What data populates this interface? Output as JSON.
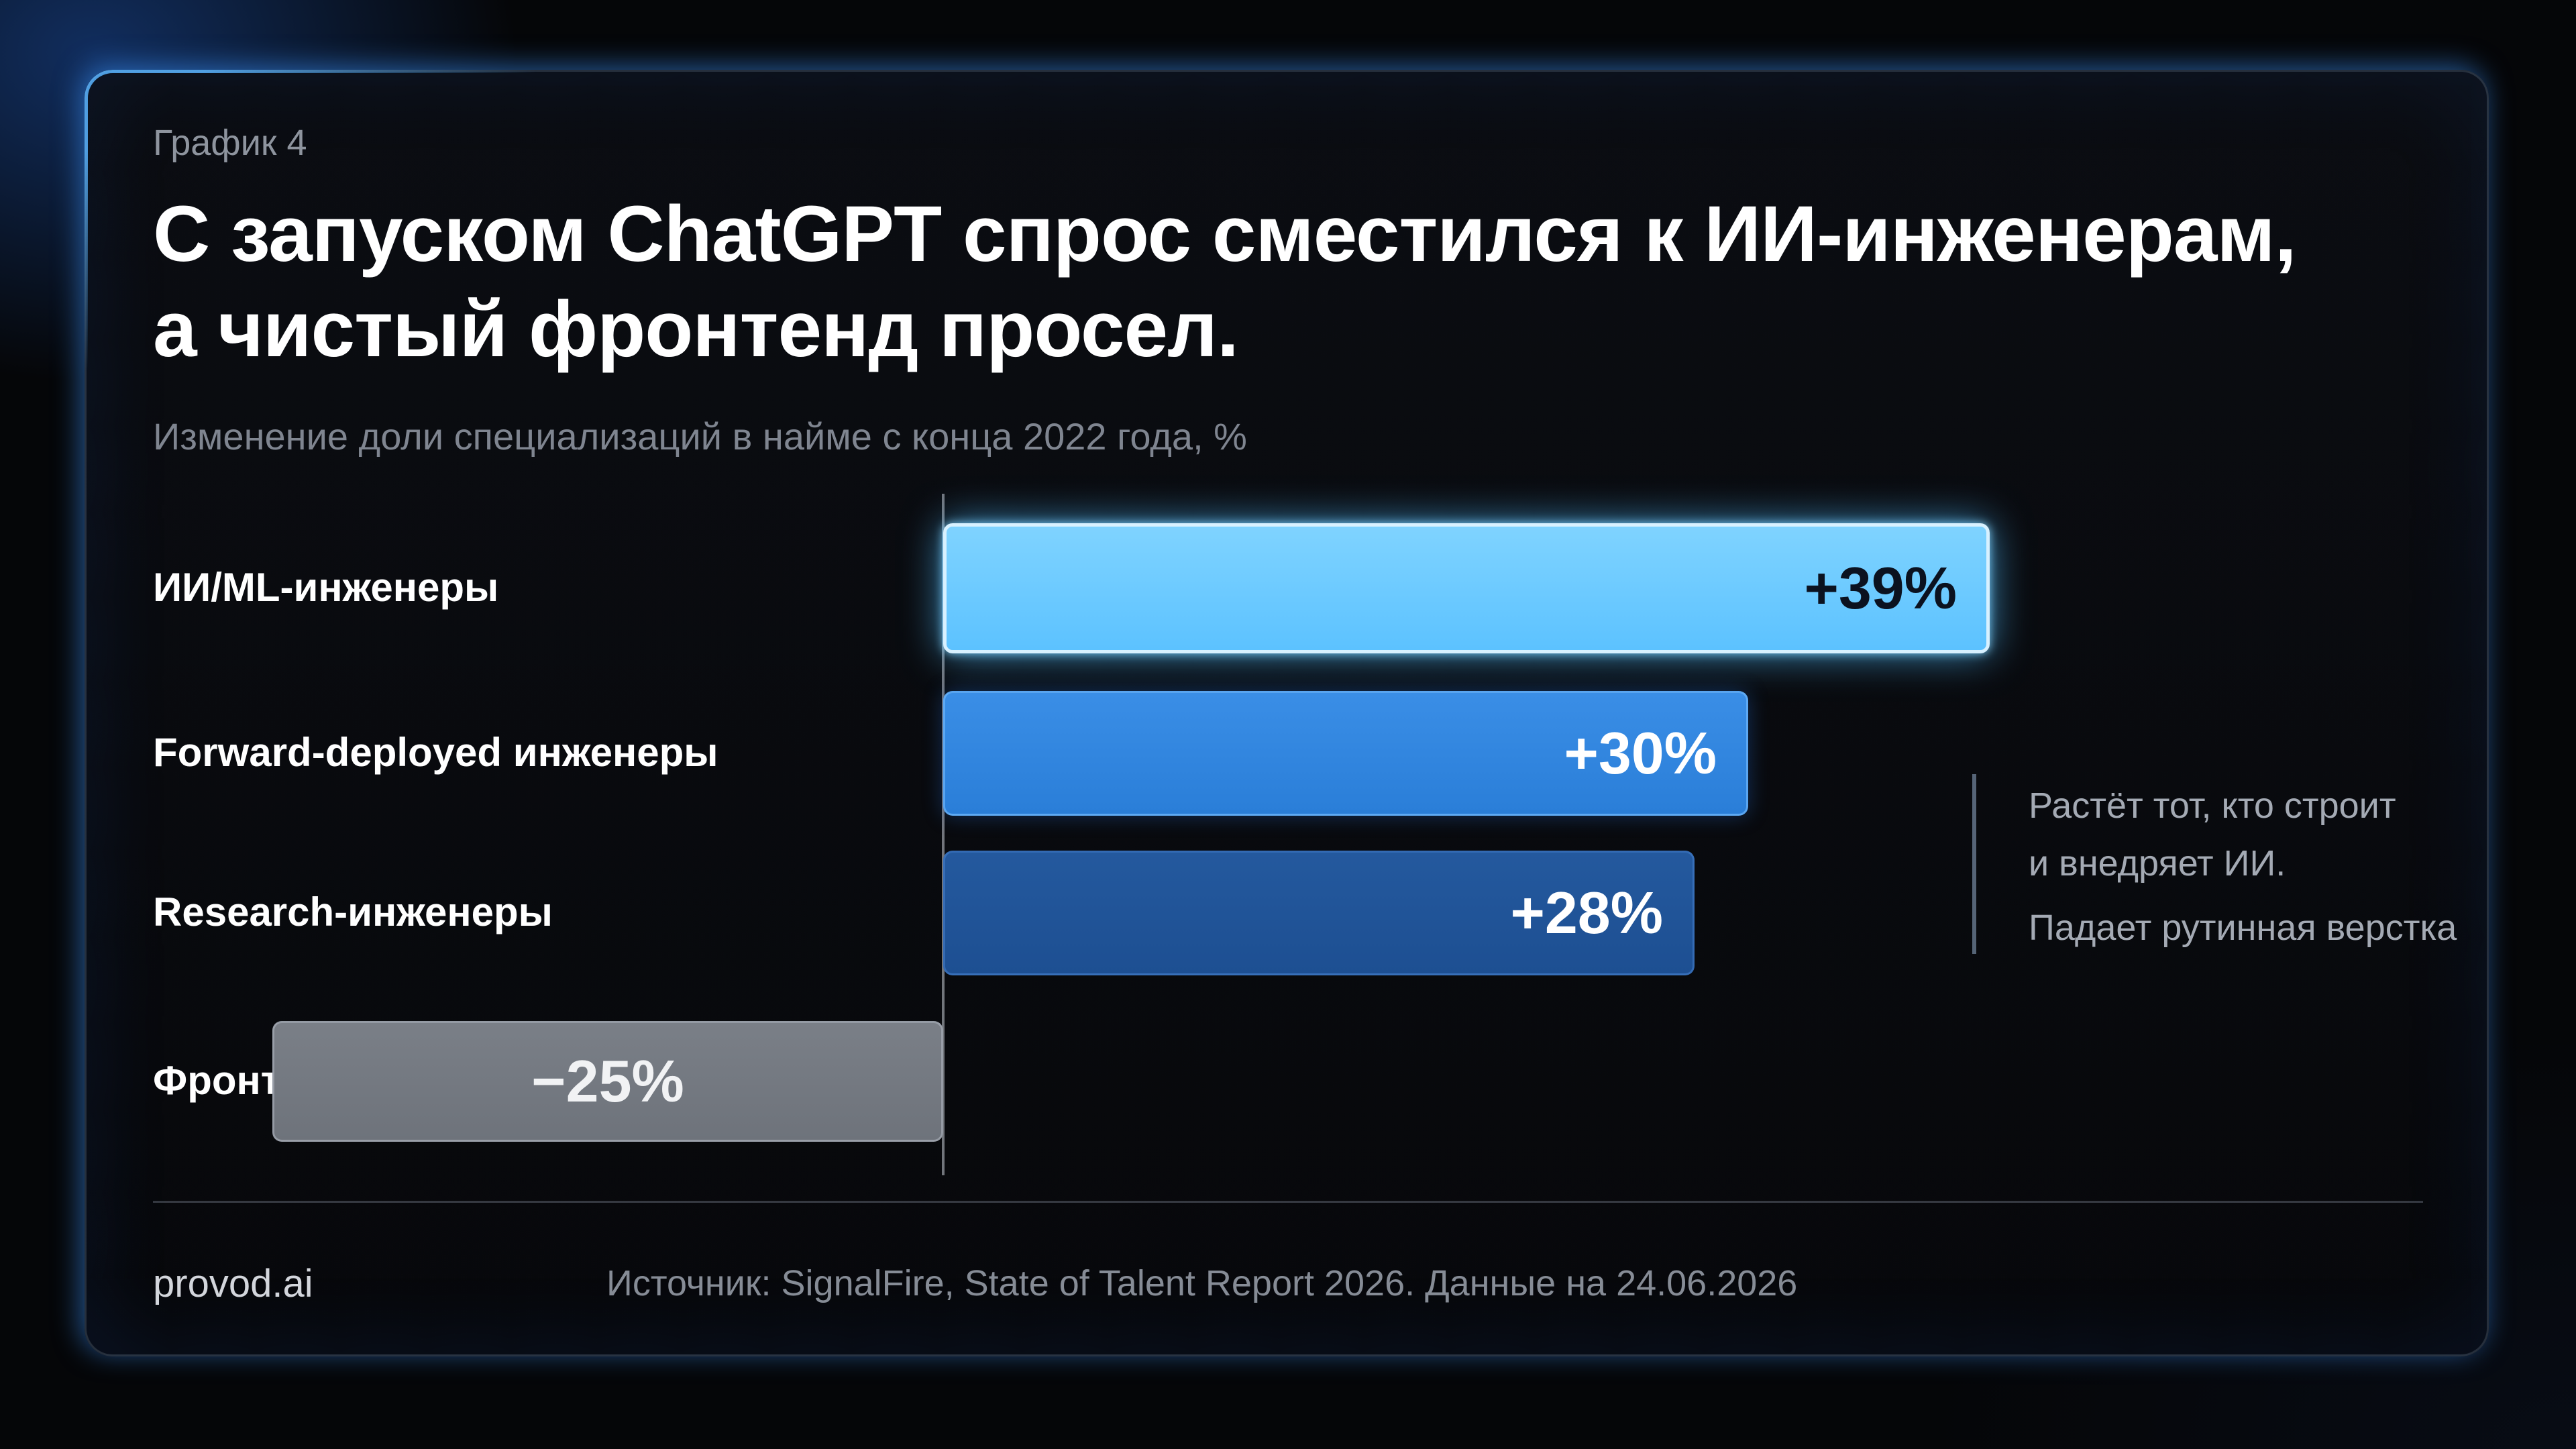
{
  "header": {
    "kicker": "График 4",
    "title": "С запуском ChatGPT спрос сместился к ИИ-инженерам, а чистый фронтенд просел.",
    "subtitle": "Изменение доли специализаций в найме с конца 2022 года, %"
  },
  "chart_data": {
    "type": "bar",
    "orientation": "horizontal",
    "categories": [
      "ИИ/ML-инженеры",
      "Forward-deployed инженеры",
      "Research-инженеры",
      "Фронтенд-специализация"
    ],
    "values": [
      39,
      30,
      28,
      -25
    ],
    "value_labels": [
      "+39%",
      "+30%",
      "+28%",
      "−25%"
    ],
    "unit": "%",
    "title": "С запуском ChatGPT спрос сместился к ИИ-инженерам, а чистый фронтенд просел.",
    "xlabel": "",
    "ylabel": "",
    "grid": false,
    "legend": "none",
    "bar_colors": [
      "#5cc2ff",
      "#2a7ed8",
      "#1d4f92",
      "#6e737b"
    ]
  },
  "annotation": {
    "lines": [
      "Растёт тот, кто строит",
      "и внедряет ИИ.",
      "Падает рутинная верстка"
    ]
  },
  "footer": {
    "brand": "provod.ai",
    "source": "Источник: SignalFire, State of Talent Report 2026. Данные на 24.06.2026"
  },
  "colors": {
    "background": "#050608",
    "card": "#0a0c10",
    "accent_glow": "#3c96ff"
  }
}
